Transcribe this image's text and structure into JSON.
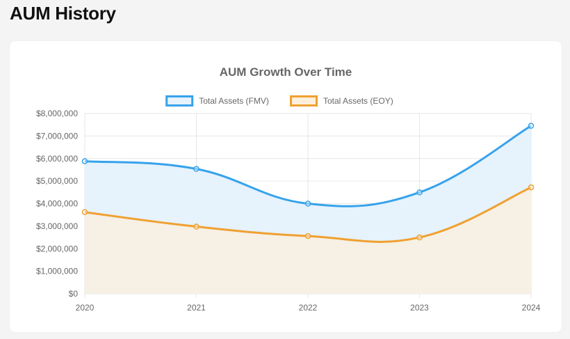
{
  "page": {
    "title": "AUM History"
  },
  "chart_data": {
    "type": "area",
    "title": "AUM Growth Over Time",
    "categories": [
      "2020",
      "2021",
      "2022",
      "2023",
      "2024"
    ],
    "series": [
      {
        "name": "Total Assets (FMV)",
        "values": [
          5880000,
          5540000,
          4000000,
          4500000,
          7450000
        ],
        "color": "#36a2eb",
        "fill": "#e6f2fc"
      },
      {
        "name": "Total Assets (EOY)",
        "values": [
          3620000,
          2980000,
          2560000,
          2500000,
          4720000
        ],
        "color": "#f0a030",
        "fill": "#fcefdc"
      }
    ],
    "ylim": [
      0,
      8000000
    ],
    "yticks": [
      0,
      1000000,
      2000000,
      3000000,
      4000000,
      5000000,
      6000000,
      7000000,
      8000000
    ],
    "ytick_labels": [
      "$0",
      "$1,000,000",
      "$2,000,000",
      "$3,000,000",
      "$4,000,000",
      "$5,000,000",
      "$6,000,000",
      "$7,000,000",
      "$8,000,000"
    ],
    "grid": true,
    "legend_position": "top"
  }
}
